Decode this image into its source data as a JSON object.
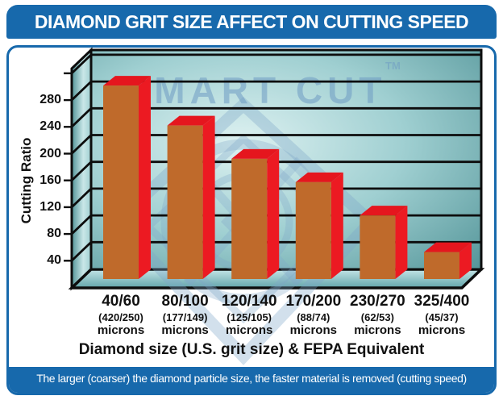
{
  "title": "DIAMOND GRIT SIZE AFFECT ON CUTTING SPEED",
  "watermark": {
    "text": "SMART CUT",
    "tm_mark": "TM"
  },
  "y_axis": {
    "label": "Cutting Ratio"
  },
  "x_axis": {
    "title": "Diamond size (U.S. grit size) & FEPA Equivalent"
  },
  "footer_note": "The larger (coarser) the diamond particle size, the faster material is removed (cutting speed)",
  "chart_data": {
    "type": "bar",
    "style": "3d-column",
    "title": "DIAMOND GRIT SIZE AFFECT ON CUTTING SPEED",
    "xlabel": "Diamond size (U.S. grit size) & FEPA Equivalent",
    "ylabel": "Cutting Ratio",
    "categories": [
      "40/60",
      "80/100",
      "120/140",
      "170/200",
      "230/270",
      "325/400"
    ],
    "fepa_equivalents": [
      "(420/250)",
      "(177/149)",
      "(125/105)",
      "(88/74)",
      "(62/53)",
      "(45/37)"
    ],
    "unit_label": "microns",
    "values": [
      305,
      245,
      195,
      160,
      110,
      55
    ],
    "ylim": [
      0,
      320
    ],
    "ytick_interval": 40,
    "yticks": [
      280,
      240,
      200,
      160,
      120,
      80,
      40
    ],
    "grid": true,
    "legend": false,
    "colors": {
      "bar_front": "#bf6a2b",
      "bar_side": "#ec1a22",
      "bar_top": "#e5161e",
      "frame_blue": "#1769ac",
      "wall_teal_dark": "#549599",
      "wall_teal_mid": "#9fcfd1",
      "wall_teal_light": "#ddf1f1",
      "watermark_blue": "#7fa6c8",
      "grid_black": "#0d0d0d"
    }
  }
}
